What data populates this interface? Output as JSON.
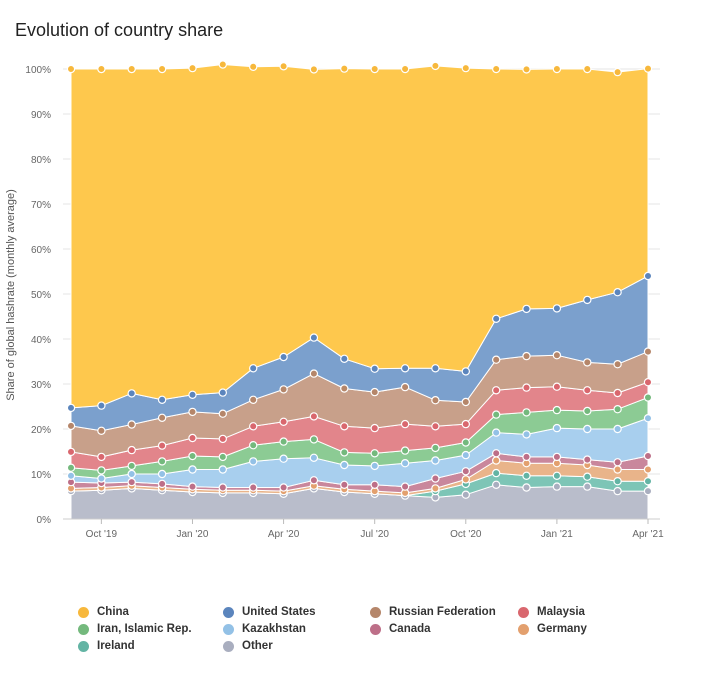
{
  "title": "Evolution of country share",
  "chart_data": {
    "type": "area",
    "stacked": true,
    "ylabel": "Share of global hashrate (monthly average)",
    "ylim": [
      0,
      100
    ],
    "yticks": [
      "0%",
      "10%",
      "20%",
      "30%",
      "40%",
      "50%",
      "60%",
      "70%",
      "80%",
      "90%",
      "100%"
    ],
    "x_ticks": [
      {
        "label": "Oct '19",
        "index": 1
      },
      {
        "label": "Jan '20",
        "index": 4
      },
      {
        "label": "Apr '20",
        "index": 7
      },
      {
        "label": "Jul '20",
        "index": 10
      },
      {
        "label": "Oct '20",
        "index": 13
      },
      {
        "label": "Jan '21",
        "index": 16
      },
      {
        "label": "Apr '21",
        "index": 19
      }
    ],
    "x": [
      "2019-09",
      "2019-10",
      "2019-11",
      "2019-12",
      "2020-01",
      "2020-02",
      "2020-03",
      "2020-04",
      "2020-05",
      "2020-06",
      "2020-07",
      "2020-08",
      "2020-09",
      "2020-10",
      "2020-11",
      "2020-12",
      "2021-01",
      "2021-02",
      "2021-03",
      "2021-04"
    ],
    "legend_position": "bottom",
    "series": [
      {
        "name": "Other",
        "color": "#b9bdcb",
        "values": [
          6.2,
          6.4,
          6.8,
          6.4,
          6.0,
          5.8,
          5.8,
          5.6,
          6.8,
          6.0,
          5.6,
          5.2,
          4.8,
          5.4,
          7.6,
          7.0,
          7.2,
          7.2,
          6.2,
          6.2
        ]
      },
      {
        "name": "Ireland",
        "color": "#7dc5b6",
        "values": [
          0,
          0,
          0,
          0,
          0,
          0,
          0,
          0,
          0,
          0,
          0,
          0,
          1.4,
          2.4,
          2.6,
          2.6,
          2.4,
          2.2,
          2.2,
          2.2
        ]
      },
      {
        "name": "Germany",
        "color": "#e9b48a",
        "values": [
          0.6,
          0.6,
          0.6,
          0.6,
          0.6,
          0.6,
          0.6,
          0.6,
          0.6,
          0.6,
          0.6,
          0.6,
          0.6,
          1.0,
          2.8,
          2.8,
          2.8,
          2.6,
          2.6,
          2.6
        ]
      },
      {
        "name": "Canada",
        "color": "#c9879c",
        "values": [
          1.4,
          1.0,
          0.8,
          0.8,
          0.6,
          0.6,
          0.6,
          0.8,
          1.2,
          1.0,
          1.4,
          1.4,
          2.2,
          1.8,
          1.6,
          1.4,
          1.4,
          1.2,
          1.6,
          3.0
        ]
      },
      {
        "name": "Kazakhstan",
        "color": "#a8cfee",
        "values": [
          1.4,
          1.0,
          1.8,
          2.2,
          3.8,
          4.0,
          5.8,
          6.4,
          5.0,
          4.4,
          4.2,
          5.2,
          4.0,
          3.6,
          4.6,
          5.0,
          6.4,
          6.8,
          7.4,
          8.4
        ]
      },
      {
        "name": "Iran, Islamic Rep.",
        "color": "#8ccb94",
        "values": [
          1.8,
          1.8,
          1.8,
          2.8,
          3.0,
          2.8,
          3.6,
          3.8,
          4.1,
          2.8,
          2.8,
          2.8,
          2.8,
          2.8,
          4.0,
          4.9,
          4.0,
          4.0,
          4.4,
          4.6
        ]
      },
      {
        "name": "Malaysia",
        "color": "#e2858b",
        "values": [
          3.5,
          3.0,
          3.5,
          3.5,
          4.0,
          4.0,
          4.2,
          4.4,
          5.1,
          5.8,
          5.6,
          5.9,
          4.8,
          4.1,
          5.4,
          5.5,
          5.2,
          4.6,
          3.6,
          3.4
        ]
      },
      {
        "name": "Russian Federation",
        "color": "#c8a08a",
        "values": [
          5.8,
          5.8,
          5.7,
          6.2,
          5.8,
          5.6,
          5.9,
          7.2,
          9.5,
          8.4,
          8.0,
          8.2,
          5.8,
          4.9,
          6.8,
          7.0,
          7.0,
          6.2,
          6.4,
          6.8
        ]
      },
      {
        "name": "United States",
        "color": "#7ba0cd",
        "values": [
          4.0,
          5.6,
          6.9,
          4.0,
          3.8,
          4.7,
          7.0,
          7.2,
          8.0,
          6.6,
          5.2,
          4.2,
          7.1,
          6.8,
          9.1,
          10.5,
          10.4,
          13.9,
          16.0,
          16.8
        ]
      },
      {
        "name": "China",
        "color": "#fec84d",
        "values": [
          75.3,
          74.8,
          72.1,
          73.5,
          72.6,
          72.9,
          67.0,
          64.6,
          59.6,
          64.5,
          66.6,
          66.5,
          67.2,
          67.4,
          55.5,
          53.2,
          53.2,
          51.3,
          48.9,
          46.1
        ]
      }
    ]
  },
  "legend": [
    {
      "label": "China",
      "color": "#f7b83c"
    },
    {
      "label": "United States",
      "color": "#5b85bd"
    },
    {
      "label": "Russian Federation",
      "color": "#b5866a"
    },
    {
      "label": "Malaysia",
      "color": "#d9676e"
    },
    {
      "label": "Iran, Islamic Rep.",
      "color": "#74b97d"
    },
    {
      "label": "Kazakhstan",
      "color": "#93c1e6"
    },
    {
      "label": "Canada",
      "color": "#bd6f88"
    },
    {
      "label": "Germany",
      "color": "#e3a06e"
    },
    {
      "label": "Ireland",
      "color": "#63b4a4"
    },
    {
      "label": "Other",
      "color": "#a9aebf"
    }
  ]
}
